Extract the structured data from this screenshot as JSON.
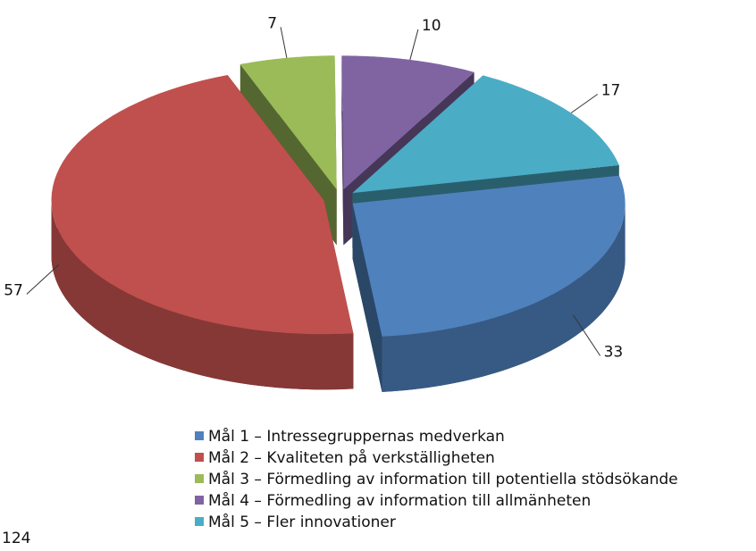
{
  "chart_data": {
    "type": "pie",
    "categories": [
      "Mål 1 – Intressegruppernas medverkan",
      "Mål 2 – Kvaliteten på verkställigheten",
      "Mål 3 – Förmedling av information till potentiella stödsökande",
      "Mål 4 – Förmedling av information till allmänheten",
      "Mål 5 – Fler innovationer"
    ],
    "values": [
      33,
      57,
      7,
      10,
      17
    ],
    "colors": [
      "#4f81bd",
      "#c0504d",
      "#9bbb59",
      "#8064a2",
      "#4bacc6"
    ],
    "total": "124",
    "legend": "bottom"
  }
}
